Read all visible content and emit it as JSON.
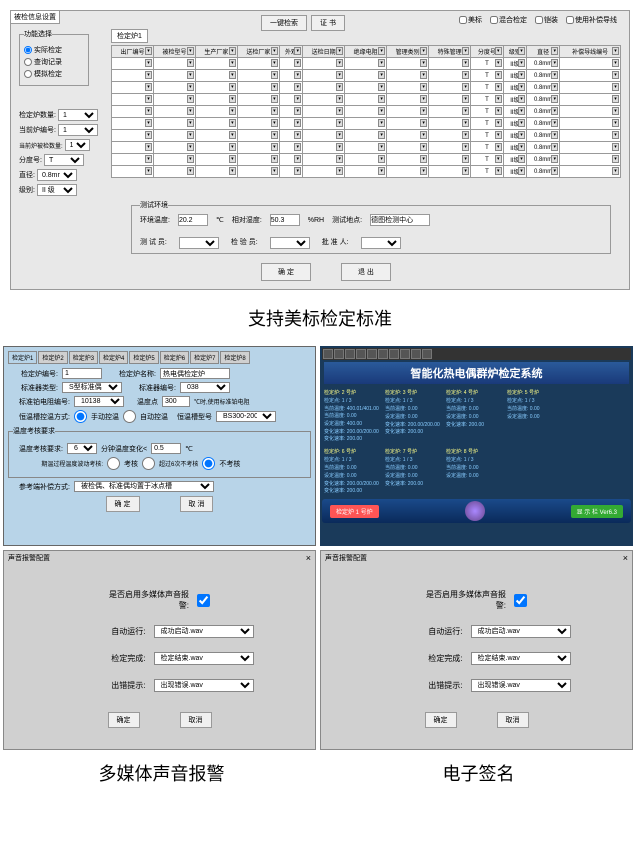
{
  "top": {
    "windowTitle": "被检信息设置",
    "funcGroup": {
      "legend": "功能选择",
      "opts": [
        "实际检定",
        "查询记录",
        "模拟检定"
      ]
    },
    "leftForm": [
      {
        "l": "检定炉数量:",
        "v": "1"
      },
      {
        "l": "当前炉编号:",
        "v": "1"
      },
      {
        "l": "当前炉被检数量:",
        "v": "10"
      },
      {
        "l": "分度号:",
        "v": "T"
      },
      {
        "l": "直径:",
        "v": "0.8mm"
      },
      {
        "l": "级别:",
        "v": "II 级"
      }
    ],
    "tabLabel": "检定炉1",
    "topBtns": [
      "一键检索",
      "证 书"
    ],
    "checks": [
      "美标",
      "混合检定",
      "铠装",
      "使用补偿导线"
    ],
    "cols": [
      "出厂编号",
      "被检型号",
      "生产厂家",
      "送检厂家",
      "外观",
      "送检日期",
      "绝缘电阻",
      "管理类别",
      "特殊管理",
      "分度号",
      "级别",
      "直径",
      "补偿导线编号"
    ],
    "rowDefaults": {
      "fdh": "T",
      "jb": "II级",
      "zj": "0.8mm"
    },
    "rowCount": 10,
    "env": {
      "legend": "测试环境",
      "t": "环境温度:",
      "tv": "20.2",
      "tu": "℃",
      "h": "相对湿度:",
      "hv": "50.3",
      "hu": "%RH",
      "loc": "测试地点:",
      "locv": "德图检测中心",
      "tester": "测 试 员:",
      "checker": "检 验 员:",
      "approver": "批 准 人:"
    },
    "ok": "确  定",
    "exit": "退  出"
  },
  "caption1": "支持美标检定标准",
  "blue": {
    "tabs": [
      "检定炉1",
      "检定炉2",
      "检定炉3",
      "检定炉4",
      "检定炉5",
      "检定炉6",
      "检定炉7",
      "检定炉8"
    ],
    "r1": {
      "l1": "检定炉编号:",
      "v1": "1",
      "l2": "检定炉名称:",
      "v2": "热电偶检定炉"
    },
    "r2": {
      "l1": "标准器类型:",
      "v1": "S型标准偶",
      "l2": "标准器编号:",
      "v2": "038"
    },
    "r3": {
      "l1": "标准铂电阻编号:",
      "v1": "10138",
      "l2": "温度点",
      "v2": "300",
      "u": "℃时,使用标准铂电阻"
    },
    "r4": {
      "l": "恒温槽控温方式:",
      "o1": "手动控温",
      "o2": "自动控温",
      "l2": "恒温槽型号",
      "v2": "BS300-20091"
    },
    "grp": {
      "legend": "温度考核要求",
      "l1": "温度考核要求:",
      "v1": "6",
      "u1": "分钟温度变化<",
      "v2": "0.5",
      "u2": "℃",
      "l2": "期温过程温度波动考核:",
      "o1": "考核",
      "o2": "超过6次不考核",
      "o3": "不考核"
    },
    "r5": {
      "l": "参考端补偿方式:",
      "v": "被检偶、标准偶均置于冰点槽"
    },
    "ok": "确 定",
    "cancel": "取 消"
  },
  "dark": {
    "title": "智能化热电偶群炉检定系统",
    "rows": [
      [
        "检定炉: 2 号炉",
        "检定炉: 3 号炉",
        "检定炉: 4 号炉",
        "检定炉: 5 号炉"
      ],
      [
        "检定点: 1 / 3",
        "检定点: 1 / 3",
        "检定点: 1 / 3",
        "检定点: 1 / 3"
      ],
      [
        "当前温度: 400.01/401.00 当前温度: 0.00",
        "当前温度: 0.00",
        "当前温度: 0.00",
        "当前温度: 0.00"
      ],
      [
        "设定温度: 400.00",
        "设定温度: 0.00",
        "设定温度: 0.00",
        "设定温度: 0.00"
      ],
      [
        "变化速率: 200.00/200.00 变化速率: 200.00",
        "变化速率: 200.00/200.00 变化速率: 200.00",
        "变化速率: 200.00"
      ]
    ],
    "rows2": [
      [
        "检定炉: 6 号炉",
        "检定炉: 7 号炉",
        "检定炉: 8 号炉"
      ],
      [
        "检定点: 1 / 3",
        "检定点: 1 / 3",
        "检定点: 1 / 3"
      ],
      [
        "当前温度: 0.00",
        "当前温度: 0.00",
        "当前温度: 0.00"
      ],
      [
        "设定温度: 0.00",
        "设定温度: 0.00",
        "设定温度: 0.00"
      ],
      [
        "变化速率: 200.00/200.00 变化速率: 200.00",
        "变化速率: 200.00"
      ]
    ],
    "leftBtn": "检定炉 1 号炉",
    "rightBtn": "显 示 栏 Ver6.3"
  },
  "gray": {
    "title": "声音报警配置",
    "chk": "是否启用多媒体声音报警:",
    "rows": [
      {
        "l": "自动运行:",
        "v": "成功启动.wav"
      },
      {
        "l": "检定完成:",
        "v": "检定结束.wav"
      },
      {
        "l": "出错提示:",
        "v": "出现错误.wav"
      }
    ],
    "ok": "确定",
    "cancel": "取消"
  },
  "caption2": "多媒体声音报警",
  "caption3": "电子签名"
}
